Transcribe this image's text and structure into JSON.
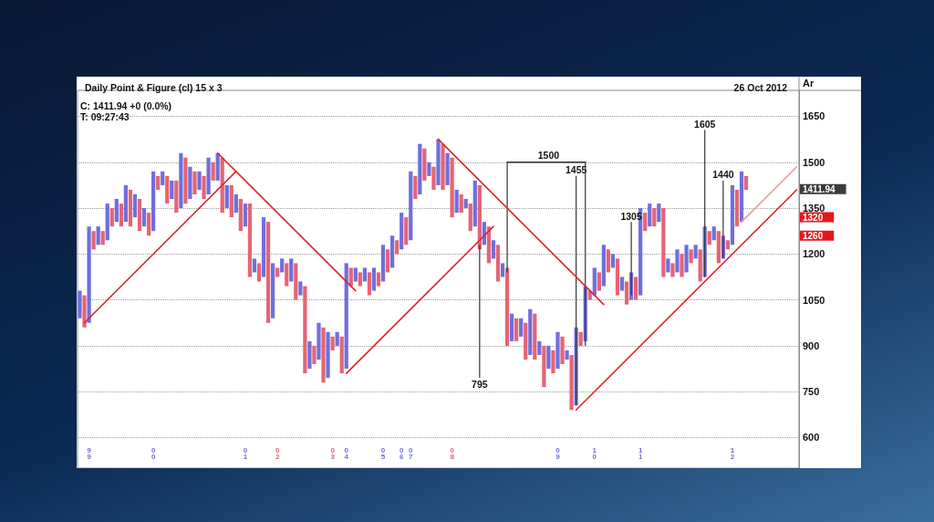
{
  "chart_data": {
    "type": "bar",
    "title": "Daily Point & Figure (cl) 15 x 3",
    "subtitle": "26 Oct 2012",
    "ylabel": "Ar",
    "annotations": [
      "C: 1411.94 +0 (0.0%)",
      "T: 09:27:43",
      "1411.94",
      "1320",
      "1260"
    ],
    "categories": [
      null,
      null,
      "99",
      null,
      null,
      null,
      null,
      null,
      null,
      null,
      null,
      null,
      null,
      null,
      null,
      null,
      "00",
      null,
      null,
      null,
      null,
      null,
      null,
      null,
      null,
      null,
      null,
      null,
      null,
      null,
      null,
      null,
      null,
      null,
      null,
      null,
      "01",
      null,
      null,
      null,
      null,
      null,
      null,
      "02",
      null,
      null,
      null,
      null,
      null,
      null,
      null,
      null,
      null,
      null,
      null,
      "03",
      null,
      null,
      "04",
      null,
      null,
      null,
      null,
      null,
      null,
      null,
      "05",
      null,
      null,
      null,
      "06",
      null,
      "07",
      null,
      null,
      null,
      null,
      null,
      null,
      null,
      null,
      "08",
      null,
      null,
      null,
      null,
      null,
      null,
      null,
      null,
      null,
      null,
      null,
      null,
      null,
      null,
      null,
      null,
      null,
      null,
      null,
      null,
      null,
      null,
      "09",
      null,
      null,
      null,
      null,
      null,
      null,
      null,
      "10",
      null,
      null,
      null,
      null,
      null,
      null,
      null,
      null,
      null,
      "11",
      null,
      null,
      null,
      null,
      null,
      null,
      null,
      null,
      null,
      null,
      null,
      null,
      null,
      null,
      null,
      null,
      null,
      null,
      null,
      "12",
      null,
      null,
      null,
      null,
      null,
      null,
      null,
      null,
      null,
      null,
      null,
      null,
      null,
      null
    ],
    "series": [
      {
        "colors": [
          "#6f6fdc",
          "#e56475",
          "#6f6fdc",
          "#e56475",
          "#6f6fdc",
          "#e56475",
          "#6f6fdc",
          "#e56475",
          "#6f6fdc",
          "#e56475",
          "#6f6fdc",
          "#e56475",
          "#6f6fdc",
          "#e56475",
          "#6f6fdc",
          "#e56475",
          "#6f6fdc",
          "#e56475",
          "#6f6fdc",
          "#e56475",
          "#6f6fdc",
          "#e56475",
          "#6f6fdc",
          "#e56475",
          "#6f6fdc",
          "#e56475",
          "#6f6fdc",
          "#e56475",
          "#6f6fdc",
          "#e56475",
          "#6f6fdc",
          "#e56475",
          "#6f6fdc",
          "#e56475",
          "#6f6fdc",
          "#e56475",
          "#6f6fdc",
          "#e56475",
          "#6f6fdc",
          "#e56475",
          "#6f6fdc",
          "#e56475",
          "#6f6fdc",
          "#e56475",
          "#6f6fdc",
          "#e56475",
          "#6f6fdc",
          "#e56475",
          "#6f6fdc",
          "#e56475",
          "#6f6fdc",
          "#e56475",
          "#6f6fdc",
          "#e56475",
          "#6f6fdc",
          "#e56475",
          "#6f6fdc",
          "#e56475",
          "#6f6fdc",
          "#e56475",
          "#6f6fdc",
          "#e56475",
          "#6f6fdc",
          "#e56475",
          "#6f6fdc",
          "#e56475",
          "#6f6fdc",
          "#e56475",
          "#6f6fdc",
          "#e56475",
          "#6f6fdc",
          "#e56475",
          "#6f6fdc",
          "#e56475",
          "#6f6fdc",
          "#e56475",
          "#6f6fdc",
          "#e56475",
          "#6f6fdc",
          "#e56475",
          "#6f6fdc",
          "#e56475",
          "#6f6fdc",
          "#e56475",
          "#6f6fdc",
          "#e56475",
          "#6f6fdc",
          "#e56475",
          "#6f6fdc",
          "#e56475",
          "#6f6fdc",
          "#e56475",
          "#6f6fdc",
          "#e56475",
          "#6f6fdc",
          "#e56475",
          "#6f6fdc",
          "#e56475",
          "#6f6fdc",
          "#e56475",
          "#6f6fdc",
          "#e56475",
          "#6f6fdc",
          "#e56475",
          "#6f6fdc",
          "#e56475",
          "#6f6fdc",
          "#e56475",
          "#6f6fdc",
          "#e56475",
          "#6f6fdc",
          "#e56475",
          "#6f6fdc",
          "#e56475",
          "#6f6fdc",
          "#e56475",
          "#6f6fdc",
          "#e56475",
          "#6f6fdc",
          "#e56475",
          "#6f6fdc",
          "#e56475",
          "#6f6fdc",
          "#e56475",
          "#6f6fdc",
          "#e56475",
          "#6f6fdc",
          "#e56475",
          "#6f6fdc",
          "#e56475",
          "#6f6fdc",
          "#e56475",
          "#6f6fdc",
          "#e56475",
          "#6f6fdc",
          "#e56475",
          "#6f6fdc",
          "#e56475",
          "#6f6fdc",
          "#e56475",
          "#6f6fdc",
          "#e56475",
          "#6f6fdc",
          "#e56475",
          "#6f6fdc",
          "#e56475",
          null,
          null,
          null,
          null,
          null,
          null,
          null,
          null,
          null,
          null,
          null
        ],
        "base": [
          990,
          960,
          975,
          1215,
          1230,
          1230,
          1245,
          1290,
          1305,
          1290,
          1305,
          1290,
          1320,
          1275,
          1290,
          1260,
          1275,
          1410,
          1425,
          1365,
          1380,
          1335,
          1350,
          1365,
          1380,
          1395,
          1410,
          1380,
          1395,
          1440,
          1440,
          1335,
          1350,
          1320,
          1335,
          1275,
          1290,
          1125,
          1140,
          1110,
          1125,
          975,
          990,
          1125,
          1140,
          1095,
          1110,
          1050,
          1065,
          810,
          825,
          840,
          855,
          780,
          795,
          885,
          900,
          810,
          825,
          1095,
          1110,
          1095,
          1110,
          1065,
          1080,
          1095,
          1110,
          1140,
          1155,
          1200,
          1215,
          1230,
          1245,
          1380,
          1395,
          1440,
          1455,
          1410,
          1425,
          1410,
          1425,
          1320,
          1335,
          1335,
          1350,
          1275,
          1290,
          1215,
          1230,
          1170,
          1185,
          1110,
          1125,
          900,
          915,
          915,
          930,
          855,
          870,
          855,
          870,
          765,
          825,
          810,
          825,
          840,
          855,
          690,
          705,
          900,
          915,
          1050,
          1065,
          1080,
          1095,
          1140,
          1155,
          1065,
          1080,
          1035,
          1050,
          1050,
          1065,
          1275,
          1290,
          1290,
          1305,
          1125,
          1140,
          1125,
          1140,
          1125,
          1140,
          1170,
          1185,
          1110,
          1125,
          1230,
          1245,
          1170,
          1185,
          1215,
          1230,
          1290,
          1305,
          1410,
          null,
          null,
          null,
          null,
          null,
          null,
          null,
          null,
          null,
          null,
          null
        ],
        "values": [
          90,
          105,
          315,
          60,
          60,
          45,
          120,
          60,
          75,
          75,
          120,
          120,
          75,
          105,
          60,
          75,
          195,
          45,
          45,
          90,
          60,
          105,
          180,
          150,
          105,
          75,
          60,
          75,
          120,
          60,
          90,
          180,
          75,
          105,
          60,
          105,
          75,
          240,
          45,
          60,
          195,
          330,
          180,
          30,
          45,
          75,
          75,
          120,
          45,
          285,
          90,
          60,
          120,
          180,
          150,
          45,
          45,
          120,
          345,
          60,
          45,
          45,
          45,
          75,
          75,
          45,
          120,
          75,
          105,
          45,
          120,
          90,
          225,
          75,
          165,
          105,
          45,
          75,
          150,
          150,
          105,
          195,
          75,
          60,
          30,
          90,
          150,
          210,
          75,
          120,
          60,
          120,
          45,
          255,
          90,
          75,
          60,
          120,
          150,
          150,
          45,
          135,
          75,
          75,
          120,
          90,
          30,
          180,
          255,
          45,
          180,
          30,
          90,
          60,
          135,
          75,
          45,
          120,
          45,
          75,
          90,
          75,
          285,
          60,
          75,
          60,
          60,
          225,
          45,
          45,
          75,
          75,
          90,
          45,
          45,
          105,
          165,
          45,
          45,
          105,
          75,
          30,
          195,
          120,
          165,
          45,
          null,
          null,
          null,
          null,
          null,
          null,
          null,
          null,
          null,
          null,
          null
        ]
      },
      {
        "color": "#333333",
        "base": [
          null,
          null,
          null,
          null,
          null,
          null,
          null,
          null,
          null,
          null,
          null,
          null,
          null,
          null,
          null,
          null,
          null,
          null,
          null,
          null,
          null,
          null,
          null,
          null,
          null,
          null,
          null,
          null,
          null,
          null,
          null,
          null,
          null,
          null,
          null,
          null,
          null,
          null,
          null,
          null,
          null,
          null,
          null,
          null,
          null,
          null,
          null,
          null,
          null,
          null,
          null,
          null,
          null,
          null,
          null,
          null,
          null,
          null,
          null,
          null,
          null,
          null,
          null,
          null,
          null,
          null,
          null,
          null,
          null,
          null,
          null,
          null,
          null,
          null,
          null,
          null,
          null,
          null,
          null,
          null,
          null,
          null,
          null,
          null,
          null,
          null,
          null,
          1230,
          null,
          null,
          null,
          null,
          null,
          1140,
          null,
          null,
          null,
          null,
          null,
          null,
          null,
          null,
          null,
          null,
          null,
          null,
          null,
          null,
          705,
          null,
          900,
          null,
          null,
          null,
          null,
          null,
          null,
          null,
          null,
          null,
          1065,
          null,
          null,
          null,
          null,
          null,
          null,
          null,
          null,
          null,
          null,
          null,
          null,
          null,
          null,
          null,
          1125,
          null,
          null,
          null,
          1185,
          null,
          null,
          null,
          null,
          null,
          null,
          null,
          null,
          null,
          null,
          null,
          null,
          null,
          null,
          null,
          null
        ],
        "values": [
          null,
          null,
          null,
          null,
          null,
          null,
          null,
          null,
          null,
          null,
          null,
          null,
          null,
          null,
          null,
          null,
          null,
          null,
          null,
          null,
          null,
          null,
          null,
          null,
          null,
          null,
          null,
          null,
          null,
          null,
          null,
          null,
          null,
          null,
          null,
          null,
          null,
          null,
          null,
          null,
          null,
          null,
          null,
          null,
          null,
          null,
          null,
          null,
          null,
          null,
          null,
          null,
          null,
          null,
          null,
          null,
          null,
          null,
          null,
          null,
          null,
          null,
          null,
          null,
          null,
          null,
          null,
          null,
          null,
          null,
          null,
          null,
          null,
          null,
          null,
          null,
          null,
          null,
          null,
          null,
          null,
          null,
          null,
          null,
          null,
          null,
          null,
          -435,
          null,
          null,
          null,
          null,
          null,
          360,
          null,
          null,
          null,
          null,
          null,
          null,
          null,
          null,
          null,
          null,
          null,
          null,
          null,
          null,
          750,
          null,
          600,
          null,
          null,
          null,
          null,
          null,
          null,
          null,
          null,
          null,
          240,
          null,
          null,
          null,
          null,
          null,
          null,
          null,
          null,
          null,
          null,
          null,
          null,
          null,
          null,
          null,
          480,
          null,
          null,
          null,
          255,
          null,
          null,
          null,
          null,
          null,
          null,
          null,
          null,
          null,
          null,
          null,
          null,
          null,
          null,
          null,
          null
        ],
        "value_labels": [
          null,
          null,
          null,
          null,
          null,
          null,
          null,
          null,
          null,
          null,
          null,
          null,
          null,
          null,
          null,
          null,
          null,
          null,
          null,
          null,
          null,
          null,
          null,
          null,
          null,
          null,
          null,
          null,
          null,
          null,
          null,
          null,
          null,
          null,
          null,
          null,
          null,
          null,
          null,
          null,
          null,
          null,
          null,
          null,
          null,
          null,
          null,
          null,
          null,
          null,
          null,
          null,
          null,
          null,
          null,
          null,
          null,
          null,
          null,
          null,
          null,
          null,
          null,
          null,
          null,
          null,
          null,
          null,
          null,
          null,
          null,
          null,
          null,
          null,
          null,
          null,
          null,
          null,
          null,
          null,
          null,
          null,
          null,
          null,
          null,
          null,
          null,
          "795",
          null,
          null,
          null,
          null,
          null,
          null,
          null,
          null,
          null,
          null,
          null,
          null,
          null,
          null,
          null,
          null,
          null,
          null,
          null,
          null,
          "1455",
          null,
          null,
          null,
          null,
          null,
          null,
          null,
          null,
          null,
          null,
          null,
          "1305",
          null,
          null,
          null,
          null,
          null,
          null,
          null,
          null,
          null,
          null,
          null,
          null,
          null,
          null,
          null,
          "1605",
          null,
          null,
          null,
          "1440",
          null,
          null,
          null,
          null,
          null,
          null,
          null,
          null,
          null,
          null,
          null,
          null,
          null,
          null,
          null,
          null
        ]
      },
      {
        "type": "line",
        "color": "#333333",
        "values": [
          null,
          null,
          null,
          null,
          null,
          null,
          null,
          null,
          null,
          null,
          null,
          null,
          null,
          null,
          null,
          null,
          null,
          null,
          null,
          null,
          null,
          null,
          null,
          null,
          null,
          null,
          null,
          null,
          null,
          null,
          null,
          null,
          null,
          null,
          null,
          null,
          null,
          null,
          null,
          null,
          null,
          null,
          null,
          null,
          null,
          null,
          null,
          null,
          null,
          null,
          null,
          null,
          null,
          null,
          null,
          null,
          null,
          null,
          null,
          null,
          null,
          null,
          null,
          null,
          null,
          null,
          null,
          null,
          null,
          null,
          null,
          null,
          null,
          null,
          null,
          null,
          null,
          null,
          null,
          null,
          null,
          null,
          null,
          null,
          null,
          null,
          null,
          null,
          null,
          null,
          null,
          null,
          null,
          1500,
          1500,
          1500,
          1500,
          1500,
          1500,
          1500,
          1500,
          1500,
          1500,
          1500,
          1500,
          1500,
          1500,
          1500,
          1500,
          1500,
          1500,
          null,
          null,
          null,
          null,
          null,
          null,
          null,
          null,
          null,
          null,
          null,
          null,
          null,
          null,
          null,
          null,
          null,
          null,
          null,
          null,
          null,
          null,
          null,
          null,
          null,
          null,
          null,
          null,
          null,
          null,
          null,
          null,
          null,
          null,
          null,
          null,
          null,
          null,
          null,
          null,
          null,
          null,
          null,
          null,
          null,
          null
        ],
        "value_labels": [
          null,
          null,
          null,
          null,
          null,
          null,
          null,
          null,
          null,
          null,
          null,
          null,
          null,
          null,
          null,
          null,
          null,
          null,
          null,
          null,
          null,
          null,
          null,
          null,
          null,
          null,
          null,
          null,
          null,
          null,
          null,
          null,
          null,
          null,
          null,
          null,
          null,
          null,
          null,
          null,
          null,
          null,
          null,
          null,
          null,
          null,
          null,
          null,
          null,
          null,
          null,
          null,
          null,
          null,
          null,
          null,
          null,
          null,
          null,
          null,
          null,
          null,
          null,
          null,
          null,
          null,
          null,
          null,
          null,
          null,
          null,
          null,
          null,
          null,
          null,
          null,
          null,
          null,
          null,
          null,
          null,
          null,
          null,
          null,
          null,
          null,
          null,
          null,
          null,
          null,
          null,
          null,
          null,
          null,
          null,
          null,
          null,
          null,
          null,
          null,
          null,
          null,
          "1500",
          null,
          null,
          null,
          null,
          null,
          null,
          null,
          null,
          null,
          null,
          null,
          null,
          null,
          null,
          null,
          null,
          null,
          null,
          null,
          null,
          null,
          null,
          null,
          null,
          null,
          null,
          null,
          null,
          null,
          null,
          null,
          null,
          null,
          null,
          null,
          null,
          null,
          null,
          null,
          null,
          null,
          null,
          null,
          null,
          null,
          null,
          null,
          null,
          null,
          null,
          null,
          null,
          null,
          null
        ]
      },
      {
        "type": "line",
        "color": "#d8282c",
        "values": [
          null,
          975,
          null,
          null,
          null,
          null,
          null,
          null,
          null,
          null,
          null,
          null,
          null,
          null,
          null,
          null,
          null,
          null,
          null,
          null,
          null,
          null,
          null,
          null,
          null,
          null,
          null,
          null,
          null,
          null,
          null,
          null,
          null,
          null,
          1470,
          null,
          null,
          null,
          null,
          null,
          null,
          null,
          null,
          null,
          null,
          null,
          null,
          null,
          null,
          null,
          null,
          null,
          null,
          null,
          null,
          null,
          null,
          null,
          null,
          null,
          null,
          null,
          null,
          null,
          null,
          null,
          null,
          null,
          null,
          null,
          null,
          null,
          null,
          null,
          null,
          null,
          null,
          null,
          null,
          null,
          null,
          null,
          null,
          null,
          null,
          null,
          null,
          null,
          null,
          null,
          null,
          null,
          null,
          null,
          null,
          null,
          null,
          null,
          null,
          null,
          null,
          null,
          null,
          null,
          null,
          null,
          null,
          null,
          null,
          null,
          null,
          null,
          null,
          null,
          null,
          null,
          null,
          null,
          null,
          null,
          null,
          null,
          null,
          null,
          null,
          null,
          null,
          null,
          null,
          null,
          null,
          null,
          null,
          null,
          null,
          null,
          null,
          null,
          null,
          null,
          null,
          null,
          null,
          null,
          null,
          null,
          null,
          null,
          null,
          null,
          null,
          null,
          null,
          null,
          null,
          null,
          null
        ]
      },
      {
        "type": "line",
        "color": "#d8282c",
        "values": [
          null,
          null,
          null,
          null,
          null,
          null,
          null,
          null,
          null,
          null,
          null,
          null,
          null,
          null,
          null,
          null,
          null,
          null,
          null,
          null,
          null,
          null,
          null,
          null,
          null,
          null,
          null,
          null,
          null,
          null,
          1530,
          null,
          null,
          null,
          null,
          null,
          null,
          null,
          null,
          null,
          null,
          null,
          null,
          null,
          null,
          null,
          null,
          null,
          null,
          null,
          null,
          null,
          null,
          null,
          null,
          null,
          null,
          null,
          null,
          null,
          1080,
          null,
          null,
          null,
          null,
          null,
          null,
          null,
          null,
          null,
          null,
          null,
          null,
          null,
          null,
          null,
          null,
          null,
          null,
          null,
          null,
          null,
          null,
          null,
          null,
          null,
          null,
          null,
          null,
          null,
          null,
          null,
          null,
          null,
          null,
          null,
          null,
          null,
          null,
          null,
          null,
          null,
          null,
          null,
          null,
          null,
          null,
          null,
          null,
          null,
          null,
          null,
          null,
          null,
          null,
          null,
          null,
          null,
          null,
          null,
          null,
          null,
          null,
          null,
          null,
          null,
          null,
          null,
          null,
          null,
          null,
          null,
          null,
          null,
          null,
          null,
          null,
          null,
          null,
          null,
          null,
          null,
          null,
          null,
          null,
          null,
          null,
          null,
          null,
          null,
          null,
          null,
          null,
          null,
          null,
          null,
          null
        ]
      },
      {
        "type": "line",
        "color": "#d8282c",
        "values": [
          null,
          null,
          null,
          null,
          null,
          null,
          null,
          null,
          null,
          null,
          null,
          null,
          null,
          null,
          null,
          null,
          null,
          null,
          null,
          null,
          null,
          null,
          null,
          null,
          null,
          null,
          null,
          null,
          null,
          null,
          null,
          null,
          null,
          null,
          null,
          null,
          null,
          null,
          null,
          null,
          null,
          null,
          null,
          null,
          null,
          null,
          null,
          null,
          null,
          null,
          null,
          null,
          null,
          null,
          null,
          null,
          null,
          null,
          810,
          null,
          null,
          null,
          null,
          null,
          null,
          null,
          null,
          null,
          null,
          null,
          null,
          null,
          null,
          null,
          null,
          null,
          null,
          null,
          null,
          null,
          null,
          null,
          null,
          null,
          null,
          null,
          null,
          null,
          null,
          null,
          1290,
          null,
          null,
          null,
          null,
          null,
          null,
          null,
          null,
          null,
          null,
          null,
          null,
          null,
          null,
          null,
          null,
          null,
          null,
          null,
          null,
          null,
          null,
          null,
          null,
          null,
          null,
          null,
          null,
          null,
          null,
          null,
          null,
          null,
          null,
          null,
          null,
          null,
          null,
          null,
          null,
          null,
          null,
          null,
          null,
          null,
          null,
          null,
          null,
          null,
          null,
          null,
          null,
          null,
          null,
          null,
          null,
          null,
          null,
          null,
          null,
          null,
          null,
          null,
          null,
          null,
          null
        ]
      },
      {
        "type": "line",
        "color": "#d8282c",
        "values": [
          null,
          null,
          null,
          null,
          null,
          null,
          null,
          null,
          null,
          null,
          null,
          null,
          null,
          null,
          null,
          null,
          null,
          null,
          null,
          null,
          null,
          null,
          null,
          null,
          null,
          null,
          null,
          null,
          null,
          null,
          null,
          null,
          null,
          null,
          null,
          null,
          null,
          null,
          null,
          null,
          null,
          null,
          null,
          null,
          null,
          null,
          null,
          null,
          null,
          null,
          null,
          null,
          null,
          null,
          null,
          null,
          null,
          null,
          null,
          null,
          null,
          null,
          null,
          null,
          null,
          null,
          null,
          null,
          null,
          null,
          null,
          null,
          null,
          null,
          null,
          null,
          null,
          null,
          1575,
          null,
          null,
          null,
          null,
          null,
          null,
          null,
          null,
          null,
          null,
          null,
          null,
          null,
          null,
          null,
          null,
          null,
          null,
          null,
          null,
          null,
          null,
          null,
          null,
          null,
          null,
          null,
          null,
          null,
          null,
          null,
          null,
          null,
          null,
          null,
          1035,
          null,
          null,
          null,
          null,
          null,
          null,
          null,
          null,
          null,
          null,
          null,
          null,
          null,
          null,
          null,
          null,
          null,
          null,
          null,
          null,
          null,
          null,
          null,
          null,
          null,
          null,
          null,
          null,
          null,
          null,
          null,
          null,
          null,
          null,
          null,
          null,
          null,
          null,
          null,
          null,
          null,
          null
        ]
      },
      {
        "type": "line",
        "color": "#d8282c",
        "values": [
          null,
          null,
          null,
          null,
          null,
          null,
          null,
          null,
          null,
          null,
          null,
          null,
          null,
          null,
          null,
          null,
          null,
          null,
          null,
          null,
          null,
          null,
          null,
          null,
          null,
          null,
          null,
          null,
          null,
          null,
          null,
          null,
          null,
          null,
          null,
          null,
          null,
          null,
          null,
          null,
          null,
          null,
          null,
          null,
          null,
          null,
          null,
          null,
          null,
          null,
          null,
          null,
          null,
          null,
          null,
          null,
          null,
          null,
          null,
          null,
          null,
          null,
          null,
          null,
          null,
          null,
          null,
          null,
          null,
          null,
          null,
          null,
          null,
          null,
          null,
          null,
          null,
          null,
          null,
          null,
          null,
          null,
          null,
          null,
          null,
          null,
          null,
          null,
          null,
          null,
          null,
          null,
          null,
          null,
          null,
          null,
          null,
          null,
          null,
          null,
          null,
          null,
          null,
          null,
          null,
          null,
          null,
          null,
          690,
          null,
          null,
          null,
          null,
          null,
          null,
          null,
          null,
          null,
          null,
          null,
          null,
          null,
          null,
          null,
          null,
          null,
          null,
          null,
          null,
          null,
          null,
          null,
          null,
          null,
          null,
          null,
          null,
          null,
          null,
          null,
          null,
          null,
          null,
          null,
          null,
          null,
          null,
          null,
          null,
          null,
          null,
          null,
          null,
          null,
          null,
          null,
          1410
        ]
      },
      {
        "type": "line",
        "color": "#ec9a9c",
        "values": [
          null,
          null,
          null,
          null,
          null,
          null,
          null,
          null,
          null,
          null,
          null,
          null,
          null,
          null,
          null,
          null,
          null,
          null,
          null,
          null,
          null,
          null,
          null,
          null,
          null,
          null,
          null,
          null,
          null,
          null,
          null,
          null,
          null,
          null,
          null,
          null,
          null,
          null,
          null,
          null,
          null,
          null,
          null,
          null,
          null,
          null,
          null,
          null,
          null,
          null,
          null,
          null,
          null,
          null,
          null,
          null,
          null,
          null,
          null,
          null,
          null,
          null,
          null,
          null,
          null,
          null,
          null,
          null,
          null,
          null,
          null,
          null,
          null,
          null,
          null,
          null,
          null,
          null,
          null,
          null,
          null,
          null,
          null,
          null,
          null,
          null,
          null,
          null,
          null,
          null,
          null,
          null,
          null,
          null,
          null,
          null,
          null,
          null,
          null,
          null,
          null,
          null,
          null,
          null,
          null,
          null,
          null,
          null,
          null,
          null,
          null,
          null,
          null,
          null,
          null,
          null,
          null,
          null,
          null,
          null,
          null,
          null,
          null,
          null,
          null,
          null,
          null,
          null,
          null,
          null,
          null,
          null,
          null,
          null,
          null,
          null,
          null,
          null,
          null,
          null,
          null,
          null,
          null,
          null,
          1305,
          null,
          null,
          null,
          null,
          null,
          null,
          null,
          null,
          null,
          null,
          null,
          1485
        ]
      }
    ],
    "ylim": [
      500,
      1735
    ],
    "yticks": [
      600,
      750,
      900,
      1050,
      1200,
      1350,
      1500,
      1650
    ],
    "grid": "y"
  }
}
